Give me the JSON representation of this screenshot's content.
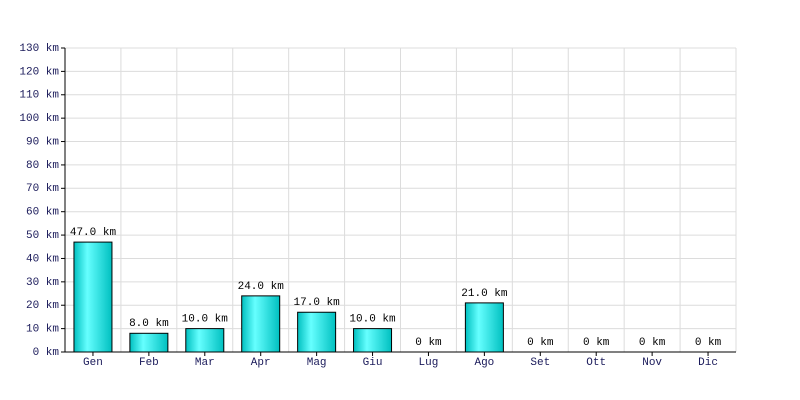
{
  "chart_data": {
    "type": "bar",
    "categories": [
      "Gen",
      "Feb",
      "Mar",
      "Apr",
      "Mag",
      "Giu",
      "Lug",
      "Ago",
      "Set",
      "Ott",
      "Nov",
      "Dic"
    ],
    "values": [
      47,
      8,
      10,
      24,
      17,
      10,
      0,
      21,
      0,
      0,
      0,
      0
    ],
    "value_labels": [
      "47.0 km",
      "8.0 km",
      "10.0 km",
      "24.0 km",
      "17.0 km",
      "10.0 km",
      "0 km",
      "21.0 km",
      "0 km",
      "0 km",
      "0 km",
      "0 km"
    ],
    "color": "#00c0c0",
    "ylim": [
      0,
      130
    ],
    "yticks": [
      {
        "value": 0,
        "label": "0 km"
      },
      {
        "value": 10,
        "label": "10 km"
      },
      {
        "value": 20,
        "label": "20 km"
      },
      {
        "value": 30,
        "label": "30 km"
      },
      {
        "value": 40,
        "label": "40 km"
      },
      {
        "value": 50,
        "label": "50 km"
      },
      {
        "value": 60,
        "label": "60 km"
      },
      {
        "value": 70,
        "label": "70 km"
      },
      {
        "value": 80,
        "label": "80 km"
      },
      {
        "value": 90,
        "label": "90 km"
      },
      {
        "value": 100,
        "label": "100 km"
      },
      {
        "value": 110,
        "label": "110 km"
      },
      {
        "value": 120,
        "label": "120 km"
      },
      {
        "value": 130,
        "label": "130 km"
      }
    ],
    "grid": true
  }
}
